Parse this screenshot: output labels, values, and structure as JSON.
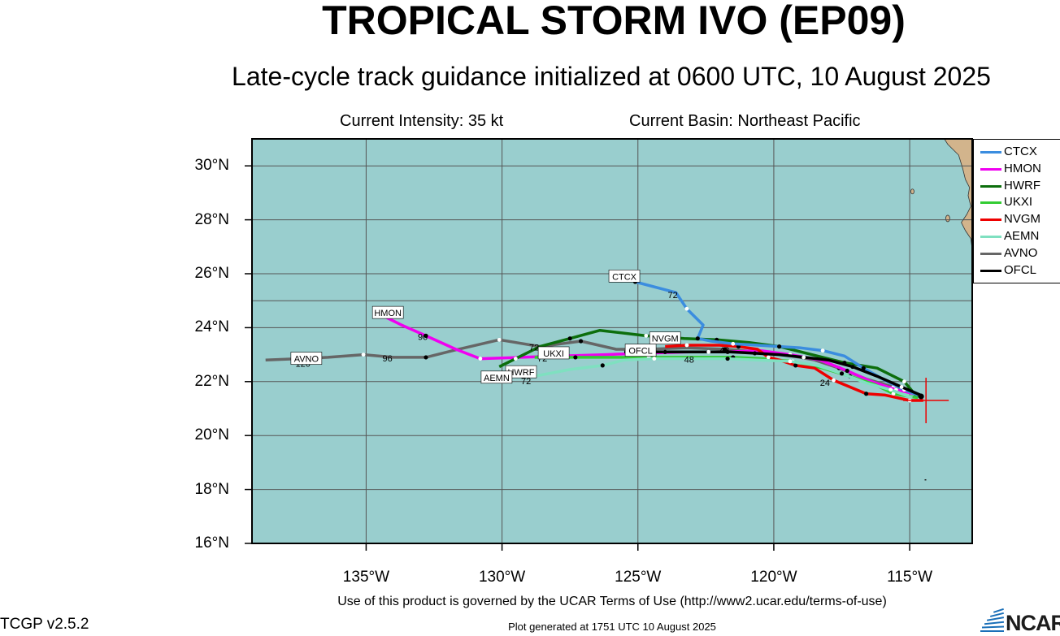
{
  "header": {
    "title": "TROPICAL STORM IVO (EP09)",
    "subtitle": "Late-cycle track guidance initialized at 0600 UTC, 10 August 2025",
    "intensity": "Current Intensity: 35 kt",
    "basin": "Current Basin: Northeast Pacific"
  },
  "axes": {
    "lat_ticks": [
      "30°N",
      "28°N",
      "26°N",
      "24°N",
      "22°N",
      "20°N",
      "18°N",
      "16°N"
    ],
    "lat_values": [
      30,
      28,
      26,
      24,
      22,
      20,
      18,
      16
    ],
    "lon_ticks": [
      "135°W",
      "130°W",
      "125°W",
      "120°W",
      "115°W"
    ],
    "lon_values": [
      -135,
      -130,
      -125,
      -120,
      -115
    ],
    "lon_range": [
      -139.2,
      -112.7
    ],
    "lat_range": [
      16,
      31
    ],
    "grid": true
  },
  "colors": {
    "ocean": "#99cece",
    "land": "#d2b48c",
    "grid": "#555555"
  },
  "legend": [
    {
      "name": "CTCX",
      "color": "#3b8ddf"
    },
    {
      "name": "HMON",
      "color": "#f000f0"
    },
    {
      "name": "HWRF",
      "color": "#0c6e0c"
    },
    {
      "name": "UKXI",
      "color": "#33cc33"
    },
    {
      "name": "NVGM",
      "color": "#ee0000"
    },
    {
      "name": "AEMN",
      "color": "#7fe0c0"
    },
    {
      "name": "AVNO",
      "color": "#666666"
    },
    {
      "name": "OFCL",
      "color": "#000000"
    }
  ],
  "current_position": {
    "lon": -114.4,
    "lat": 21.3
  },
  "tracks": [
    {
      "name": "AVNO",
      "color": "#666666",
      "label_at": {
        "lon": -137.2,
        "lat": 22.85
      },
      "points": [
        [
          -114.6,
          21.5
        ],
        [
          -115.6,
          21.8
        ],
        [
          -116.6,
          22.1
        ],
        [
          -117.6,
          22.5
        ],
        [
          -118.5,
          22.8
        ],
        [
          -119.6,
          23.0
        ],
        [
          -120.6,
          23.1
        ],
        [
          -121.8,
          23.2
        ],
        [
          -123.2,
          23.25
        ],
        [
          -124.7,
          23.2
        ],
        [
          -125.8,
          23.2
        ],
        [
          -127.1,
          23.5
        ],
        [
          -128.6,
          23.3
        ],
        [
          -130.1,
          23.55
        ],
        [
          -131.8,
          23.15
        ],
        [
          -132.8,
          22.9
        ],
        [
          -134.0,
          22.9
        ],
        [
          -135.1,
          23.0
        ],
        [
          -136.4,
          22.9
        ],
        [
          -137.5,
          22.85
        ],
        [
          -138.7,
          22.8
        ]
      ],
      "hour_labels": [
        {
          "lon": -137.6,
          "lat": 22.55,
          "text": "120"
        },
        {
          "lon": -134.4,
          "lat": 22.75,
          "text": "96"
        }
      ]
    },
    {
      "name": "HMON",
      "color": "#f000f0",
      "label_at": {
        "lon": -134.2,
        "lat": 24.55
      },
      "points": [
        [
          -114.6,
          21.5
        ],
        [
          -115.5,
          21.7
        ],
        [
          -116.4,
          22.0
        ],
        [
          -117.3,
          22.4
        ],
        [
          -118.3,
          22.8
        ],
        [
          -119.4,
          23.0
        ],
        [
          -120.5,
          23.15
        ],
        [
          -121.7,
          23.1
        ],
        [
          -123.1,
          23.1
        ],
        [
          -124.8,
          23.05
        ],
        [
          -126.2,
          23.0
        ],
        [
          -127.8,
          22.95
        ],
        [
          -129.3,
          22.9
        ],
        [
          -130.8,
          22.85
        ],
        [
          -131.7,
          23.2
        ],
        [
          -132.8,
          23.7
        ],
        [
          -133.7,
          24.1
        ],
        [
          -134.4,
          24.45
        ]
      ],
      "hour_labels": [
        {
          "lon": -133.1,
          "lat": 23.55,
          "text": "96"
        }
      ]
    },
    {
      "name": "HWRF",
      "color": "#0c6e0c",
      "label_at": {
        "lon": -129.3,
        "lat": 22.35
      },
      "points": [
        [
          -114.7,
          21.4
        ],
        [
          -115.2,
          22.0
        ],
        [
          -116.2,
          22.5
        ],
        [
          -117.4,
          22.7
        ],
        [
          -118.6,
          23.0
        ],
        [
          -119.8,
          23.3
        ],
        [
          -120.9,
          23.45
        ],
        [
          -122.1,
          23.55
        ],
        [
          -123.3,
          23.6
        ],
        [
          -124.7,
          23.7
        ],
        [
          -126.4,
          23.9
        ],
        [
          -127.5,
          23.6
        ],
        [
          -128.6,
          23.3
        ],
        [
          -129.5,
          22.85
        ],
        [
          -130.1,
          22.55
        ]
      ],
      "hour_labels": [
        {
          "lon": -129.0,
          "lat": 23.15,
          "text": "72"
        }
      ]
    },
    {
      "name": "UKXI",
      "color": "#33cc33",
      "label_at": {
        "lon": -128.1,
        "lat": 23.05
      },
      "points": [
        [
          -114.7,
          21.4
        ],
        [
          -115.6,
          21.55
        ],
        [
          -116.3,
          21.9
        ],
        [
          -117.2,
          22.2
        ],
        [
          -118.2,
          22.5
        ],
        [
          -119.3,
          22.75
        ],
        [
          -120.4,
          22.85
        ],
        [
          -121.5,
          22.9
        ],
        [
          -123.1,
          22.9
        ],
        [
          -124.6,
          22.9
        ],
        [
          -126.0,
          22.9
        ],
        [
          -127.3,
          22.9
        ],
        [
          -128.8,
          22.9
        ]
      ],
      "hour_labels": [
        {
          "lon": -128.7,
          "lat": 22.75,
          "text": "72"
        }
      ]
    },
    {
      "name": "NVGM",
      "color": "#ee0000",
      "label_at": {
        "lon": -124.0,
        "lat": 23.6
      },
      "points": [
        [
          -114.5,
          21.3
        ],
        [
          -115.0,
          21.3
        ],
        [
          -115.9,
          21.5
        ],
        [
          -116.6,
          21.55
        ],
        [
          -117.2,
          21.8
        ],
        [
          -117.8,
          22.05
        ],
        [
          -118.5,
          22.5
        ],
        [
          -119.2,
          22.6
        ],
        [
          -119.8,
          22.8
        ],
        [
          -120.2,
          22.9
        ],
        [
          -120.6,
          23.2
        ],
        [
          -121.3,
          23.3
        ],
        [
          -122.0,
          23.35
        ],
        [
          -123.2,
          23.35
        ],
        [
          -124.0,
          23.3
        ]
      ],
      "hour_labels": [
        {
          "lon": -118.3,
          "lat": 21.85,
          "text": "24"
        },
        {
          "lon": -122.0,
          "lat": 23.05,
          "text": "48"
        }
      ]
    },
    {
      "name": "AEMN",
      "color": "#7fe0c0",
      "label_at": {
        "lon": -130.2,
        "lat": 22.15
      },
      "points": [
        [
          -114.9,
          21.4
        ],
        [
          -115.7,
          21.7
        ],
        [
          -116.6,
          21.95
        ],
        [
          -117.5,
          22.3
        ],
        [
          -118.4,
          22.6
        ],
        [
          -119.4,
          22.75
        ],
        [
          -120.6,
          22.8
        ],
        [
          -121.7,
          22.85
        ],
        [
          -123.0,
          22.85
        ],
        [
          -124.4,
          22.85
        ],
        [
          -125.5,
          22.8
        ],
        [
          -126.3,
          22.6
        ],
        [
          -127.5,
          22.45
        ],
        [
          -128.8,
          22.2
        ]
      ],
      "hour_labels": [
        {
          "lon": -129.3,
          "lat": 21.9,
          "text": "72"
        }
      ]
    },
    {
      "name": "CTCX",
      "color": "#3b8ddf",
      "label_at": {
        "lon": -125.5,
        "lat": 25.9
      },
      "points": [
        [
          -114.7,
          21.5
        ],
        [
          -115.2,
          21.7
        ],
        [
          -116.0,
          22.1
        ],
        [
          -116.7,
          22.5
        ],
        [
          -117.4,
          22.95
        ],
        [
          -118.2,
          23.15
        ],
        [
          -119.0,
          23.25
        ],
        [
          -119.8,
          23.3
        ],
        [
          -120.6,
          23.35
        ],
        [
          -121.5,
          23.4
        ],
        [
          -122.3,
          23.5
        ],
        [
          -122.8,
          23.6
        ],
        [
          -122.6,
          24.1
        ],
        [
          -123.2,
          24.7
        ],
        [
          -123.6,
          25.3
        ],
        [
          -125.1,
          25.7
        ]
      ],
      "hour_labels": [
        {
          "lon": -123.9,
          "lat": 25.1,
          "text": "72"
        }
      ]
    },
    {
      "name": "OFCL",
      "color": "#000000",
      "label_at": {
        "lon": -124.9,
        "lat": 23.15
      },
      "points": [
        [
          -114.6,
          21.5
        ],
        [
          -115.3,
          21.8
        ],
        [
          -116.2,
          22.2
        ],
        [
          -117.1,
          22.55
        ],
        [
          -118.0,
          22.8
        ],
        [
          -118.9,
          22.9
        ],
        [
          -119.8,
          23.0
        ],
        [
          -120.7,
          23.05
        ],
        [
          -121.6,
          23.1
        ],
        [
          -122.4,
          23.1
        ],
        [
          -123.2,
          23.1
        ],
        [
          -124.0,
          23.1
        ],
        [
          -125.5,
          23.1
        ]
      ],
      "hour_labels": [
        {
          "lon": -123.3,
          "lat": 22.7,
          "text": "48"
        }
      ]
    }
  ],
  "footer": {
    "terms": "Use of this product is governed by the UCAR Terms of Use (http://www2.ucar.edu/terms-of-use)",
    "version": "TCGP v2.5.2",
    "generated": "Plot generated at 1751 UTC   10 August 2025",
    "logo": "NCAR"
  }
}
